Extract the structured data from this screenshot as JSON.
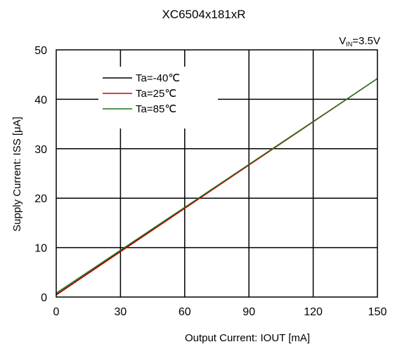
{
  "chart_data": {
    "type": "line",
    "title": "XC6504x181xR",
    "condition": {
      "prefix": "V",
      "subscript": "IN",
      "suffix": "=3.5V"
    },
    "xlabel": "Output Current: IOUT  [mA]",
    "ylabel": "Supply Current: ISS [μA]",
    "xlim": [
      0,
      150
    ],
    "ylim": [
      0,
      50
    ],
    "xticks": [
      0,
      30,
      60,
      90,
      120,
      150
    ],
    "yticks": [
      0,
      10,
      20,
      30,
      40,
      50
    ],
    "grid": true,
    "legend_position": "upper-left",
    "series": [
      {
        "name": "Ta=-40℃",
        "color": "#000000",
        "x": [
          0,
          150
        ],
        "y": [
          0.5,
          44.2
        ]
      },
      {
        "name": "Ta=25℃",
        "color": "#d40000",
        "x": [
          0,
          150
        ],
        "y": [
          0.4,
          44.2
        ]
      },
      {
        "name": "Ta=85℃",
        "color": "#1a7a1a",
        "x": [
          0,
          150
        ],
        "y": [
          0.8,
          44.2
        ]
      }
    ]
  }
}
